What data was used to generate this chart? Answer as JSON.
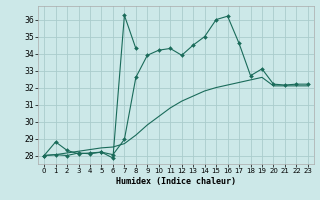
{
  "xlabel": "Humidex (Indice chaleur)",
  "background_color": "#cce8e8",
  "grid_color": "#aacccc",
  "line_color": "#1a6b5a",
  "xlim": [
    -0.5,
    23.5
  ],
  "ylim": [
    27.5,
    36.8
  ],
  "yticks": [
    28,
    29,
    30,
    31,
    32,
    33,
    34,
    35,
    36
  ],
  "xticks": [
    0,
    1,
    2,
    3,
    4,
    5,
    6,
    7,
    8,
    9,
    10,
    11,
    12,
    13,
    14,
    15,
    16,
    17,
    18,
    19,
    20,
    21,
    22,
    23
  ],
  "line1_x": [
    0,
    1,
    2,
    3,
    4,
    5,
    6,
    7,
    8,
    9,
    10,
    11,
    12,
    13,
    14,
    15,
    16,
    17,
    18,
    19,
    20,
    21,
    22,
    23
  ],
  "line1_y": [
    28.0,
    28.8,
    28.3,
    28.1,
    28.15,
    28.2,
    28.05,
    28.95,
    32.6,
    33.9,
    34.2,
    34.3,
    33.9,
    34.5,
    35.0,
    36.0,
    36.2,
    34.6,
    32.7,
    33.1,
    32.2,
    32.15,
    32.2,
    32.2
  ],
  "line2_x": [
    0,
    1,
    2,
    3,
    4,
    5,
    6,
    7,
    8
  ],
  "line2_y": [
    28.0,
    28.05,
    28.0,
    28.15,
    28.1,
    28.2,
    27.85,
    36.25,
    34.3
  ],
  "line3_x": [
    0,
    1,
    2,
    3,
    4,
    5,
    6,
    7,
    8,
    9,
    10,
    11,
    12,
    13,
    14,
    15,
    16,
    17,
    18,
    19,
    20,
    21,
    22,
    23
  ],
  "line3_y": [
    28.0,
    28.05,
    28.15,
    28.25,
    28.35,
    28.45,
    28.5,
    28.7,
    29.2,
    29.8,
    30.3,
    30.8,
    31.2,
    31.5,
    31.8,
    32.0,
    32.15,
    32.3,
    32.45,
    32.6,
    32.1,
    32.1,
    32.1,
    32.1
  ]
}
